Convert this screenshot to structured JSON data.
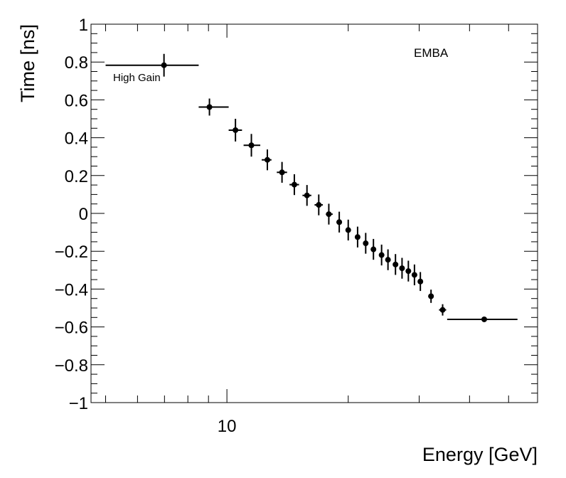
{
  "chart_data": {
    "type": "scatter",
    "title": "",
    "xlabel": "Energy [GeV]",
    "ylabel": "Time [ns]",
    "x_scale": "log",
    "xlim": [
      4.6,
      59
    ],
    "ylim": [
      -1,
      1
    ],
    "grid": false,
    "legend": "none",
    "y_ticks": [
      -1,
      -0.8,
      -0.6,
      -0.4,
      -0.2,
      0,
      0.2,
      0.4,
      0.6,
      0.8,
      1
    ],
    "y_tick_labels": [
      "−1",
      "−0.8",
      "−0.6",
      "−0.4",
      "−0.2",
      "0",
      "0.2",
      "0.4",
      "0.6",
      "0.8",
      "1"
    ],
    "x_tick_labels": [
      {
        "value": 10,
        "label": "10"
      }
    ],
    "annotations": {
      "detector": "EMBA",
      "gain": "High Gain"
    },
    "series": [
      {
        "name": "EMBA High Gain",
        "points": [
          {
            "x": 6.98,
            "xlow": 5.0,
            "xhigh": 8.51,
            "y": 0.783,
            "yerr": 0.06
          },
          {
            "x": 9.05,
            "xlow": 8.51,
            "xhigh": 10.1,
            "y": 0.562,
            "yerr": 0.045
          },
          {
            "x": 10.5,
            "xlow": 10.1,
            "xhigh": 10.9,
            "y": 0.44,
            "yerr": 0.06
          },
          {
            "x": 11.5,
            "xlow": 11.0,
            "xhigh": 12.1,
            "y": 0.36,
            "yerr": 0.06
          },
          {
            "x": 12.6,
            "xlow": 12.2,
            "xhigh": 12.9,
            "y": 0.283,
            "yerr": 0.055
          },
          {
            "x": 13.7,
            "xlow": 13.3,
            "xhigh": 14.1,
            "y": 0.217,
            "yerr": 0.055
          },
          {
            "x": 14.7,
            "xlow": 14.3,
            "xhigh": 15.1,
            "y": 0.152,
            "yerr": 0.055
          },
          {
            "x": 15.8,
            "xlow": 15.4,
            "xhigh": 16.2,
            "y": 0.095,
            "yerr": 0.055
          },
          {
            "x": 16.9,
            "xlow": 16.5,
            "xhigh": 17.3,
            "y": 0.045,
            "yerr": 0.055
          },
          {
            "x": 17.9,
            "xlow": 17.6,
            "xhigh": 18.3,
            "y": -0.004,
            "yerr": 0.055
          },
          {
            "x": 19.0,
            "xlow": 18.7,
            "xhigh": 19.3,
            "y": -0.046,
            "yerr": 0.055
          },
          {
            "x": 20.0,
            "xlow": 19.7,
            "xhigh": 20.3,
            "y": -0.088,
            "yerr": 0.055
          },
          {
            "x": 21.1,
            "xlow": 20.8,
            "xhigh": 21.4,
            "y": -0.125,
            "yerr": 0.055
          },
          {
            "x": 22.1,
            "xlow": 21.8,
            "xhigh": 22.4,
            "y": -0.158,
            "yerr": 0.055
          },
          {
            "x": 23.1,
            "xlow": 22.8,
            "xhigh": 23.4,
            "y": -0.19,
            "yerr": 0.055
          },
          {
            "x": 24.2,
            "xlow": 23.9,
            "xhigh": 24.5,
            "y": -0.22,
            "yerr": 0.055
          },
          {
            "x": 25.1,
            "xlow": 24.8,
            "xhigh": 25.4,
            "y": -0.245,
            "yerr": 0.055
          },
          {
            "x": 26.2,
            "xlow": 25.9,
            "xhigh": 26.5,
            "y": -0.27,
            "yerr": 0.055
          },
          {
            "x": 27.2,
            "xlow": 26.9,
            "xhigh": 27.5,
            "y": -0.29,
            "yerr": 0.055
          },
          {
            "x": 28.2,
            "xlow": 27.9,
            "xhigh": 28.5,
            "y": -0.305,
            "yerr": 0.055
          },
          {
            "x": 29.2,
            "xlow": 28.9,
            "xhigh": 29.5,
            "y": -0.325,
            "yerr": 0.055
          },
          {
            "x": 30.2,
            "xlow": 29.9,
            "xhigh": 30.5,
            "y": -0.36,
            "yerr": 0.05
          },
          {
            "x": 32.1,
            "xlow": 31.6,
            "xhigh": 32.6,
            "y": -0.438,
            "yerr": 0.035
          },
          {
            "x": 34.3,
            "xlow": 33.6,
            "xhigh": 35.0,
            "y": -0.51,
            "yerr": 0.03
          },
          {
            "x": 43.5,
            "xlow": 35.2,
            "xhigh": 52.6,
            "y": -0.56,
            "yerr": 0.01
          }
        ]
      }
    ]
  }
}
